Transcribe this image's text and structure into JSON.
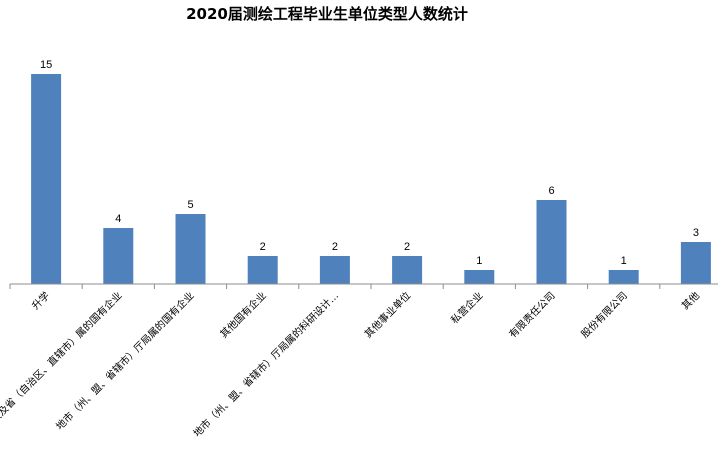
{
  "chart_data": {
    "type": "bar",
    "title": "2020届测绘工程毕业生单位类型人数统计",
    "xlabel": "",
    "ylabel": "",
    "categories": [
      "升学",
      "中央及省（自治区、直辖市）属的国有企业",
      "地市（州、盟、省辖市）厅局属的国有企业",
      "其他国有企业",
      "地市（州、盟、省辖市）厅局属的科研设计…",
      "其他事业单位",
      "私营企业",
      "有限责任公司",
      "股份有限公司",
      "其他"
    ],
    "values": [
      15,
      4,
      5,
      2,
      2,
      2,
      1,
      6,
      1,
      3
    ],
    "ylim": [
      0,
      15
    ],
    "grid": false,
    "legend": "none",
    "data_labels": true,
    "bar_color": "#4f81bd"
  }
}
